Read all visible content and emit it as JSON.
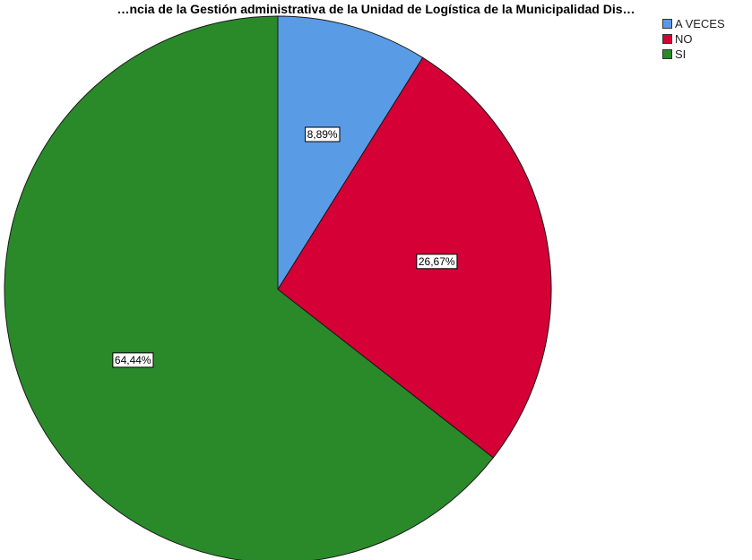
{
  "chart_data": {
    "type": "pie",
    "title": "…ncia de la Gestión administrativa de la Unidad de Logística de la Municipalidad Dis…",
    "categories": [
      "A VECES",
      "NO",
      "SI"
    ],
    "values": [
      8.89,
      26.67,
      64.44
    ],
    "labels": [
      "8,89%",
      "26,67%",
      "64,44%"
    ],
    "colors": [
      "#5a9be6",
      "#d40036",
      "#2a8a2a"
    ],
    "legend": {
      "position": "top-right",
      "items": [
        "A VECES",
        "NO",
        "SI"
      ]
    }
  }
}
